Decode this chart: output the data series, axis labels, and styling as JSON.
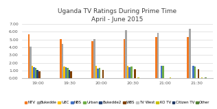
{
  "title": "Uganda TV Ratings During Prime Time\nApril - June 2015",
  "times": [
    "19:00",
    "19:30",
    "20:00",
    "20:30",
    "21:00",
    "21:30"
  ],
  "channels": [
    "NTV",
    "Bukedde",
    "UBC",
    "NBS",
    "Urban",
    "Bukedde2",
    "WBS",
    "TV West",
    "KO TV",
    "Citizen TV",
    "Other"
  ],
  "colors": [
    "#f47920",
    "#a5a5a5",
    "#ffc000",
    "#4472c4",
    "#70ad47",
    "#264478",
    "#7f3f00",
    "#c0c0c0",
    "#c9c000",
    "#203864",
    "#548235"
  ],
  "data": {
    "NTV": [
      5.7,
      5.1,
      4.8,
      5.1,
      5.3,
      5.35
    ],
    "Bukedde": [
      4.05,
      4.45,
      5.1,
      6.2,
      5.85,
      6.35
    ],
    "UBC": [
      1.6,
      1.55,
      1.65,
      1.6,
      0.02,
      0.02
    ],
    "NBS": [
      1.45,
      1.45,
      1.3,
      1.45,
      1.6,
      1.65
    ],
    "Urban": [
      1.35,
      1.35,
      1.35,
      1.5,
      1.6,
      1.55
    ],
    "Bukedde2": [
      1.1,
      1.1,
      0.02,
      0.02,
      0.02,
      0.02
    ],
    "WBS": [
      0.95,
      0.95,
      1.1,
      1.15,
      0.02,
      1.2
    ],
    "TV West": [
      0.02,
      0.02,
      0.02,
      0.02,
      0.02,
      0.02
    ],
    "KO TV": [
      0.05,
      0.05,
      0.05,
      0.1,
      0.1,
      0.1
    ],
    "Citizen TV": [
      0.02,
      0.02,
      0.02,
      0.02,
      0.02,
      0.02
    ],
    "Other": [
      0.05,
      0.05,
      0.05,
      0.05,
      0.05,
      0.1
    ]
  },
  "ylim": [
    0,
    7.0
  ],
  "yticks": [
    0.0,
    1.0,
    2.0,
    3.0,
    4.0,
    5.0,
    6.0,
    7.0
  ],
  "background": "#ffffff",
  "title_fontsize": 6.5,
  "legend_fontsize": 4.0,
  "tick_fontsize": 4.5
}
